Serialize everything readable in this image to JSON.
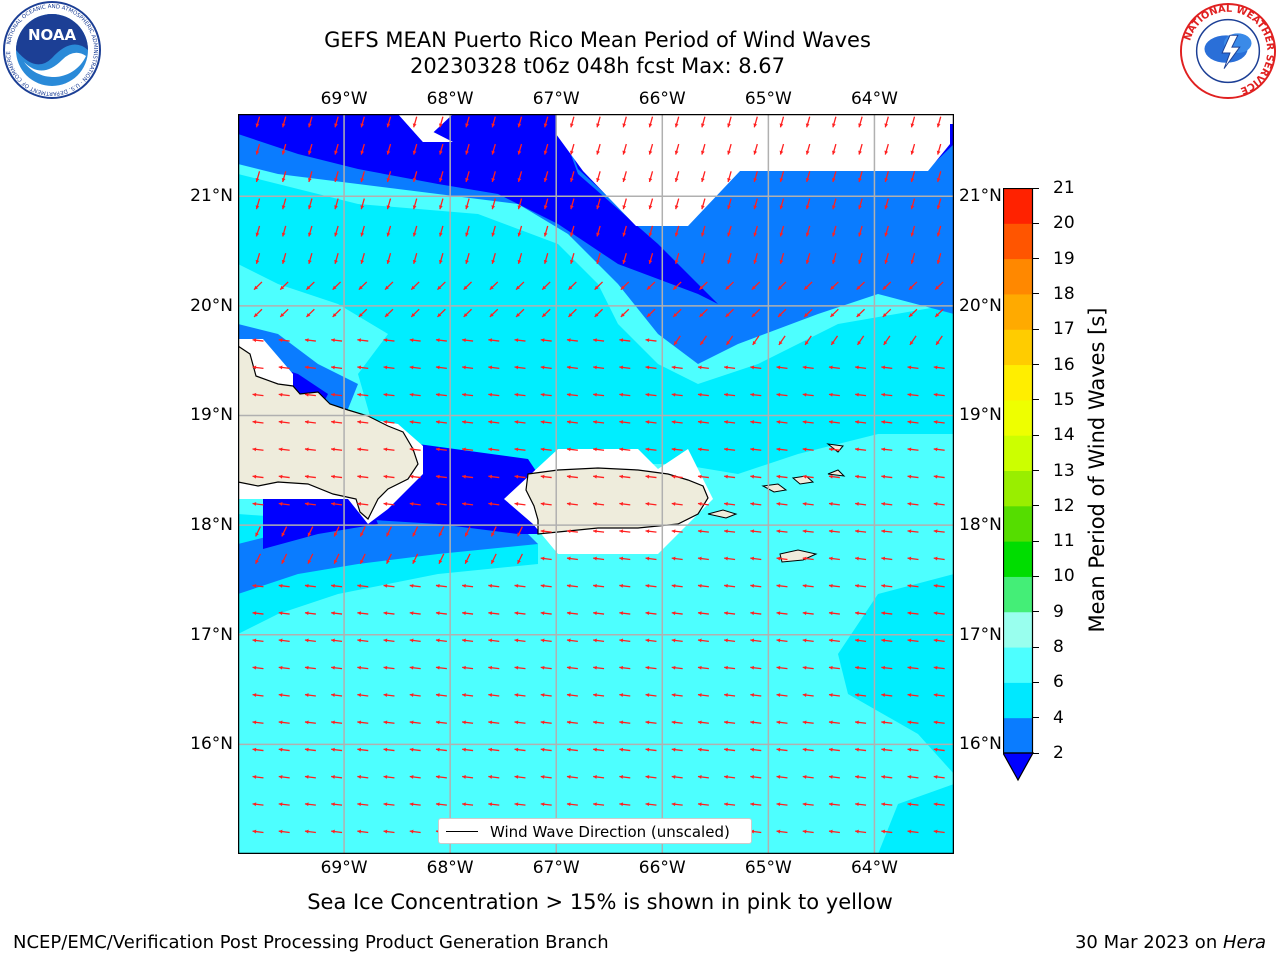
{
  "title": {
    "line1": "GEFS MEAN Puerto Rico Mean Period of Wind Waves",
    "line2": "20230328 t06z 048h fcst   Max: 8.67"
  },
  "logos": {
    "left": {
      "icon": "noaa-logo",
      "ring_text": "NATIONAL OCEANIC AND ATMOSPHERIC ADMINISTRATION · U.S. DEPARTMENT OF COMMERCE",
      "center_text": "NOAA"
    },
    "right": {
      "icon": "nws-logo",
      "ring_text": "NATIONAL WEATHER SERVICE"
    }
  },
  "map": {
    "lon_labels": [
      "69°W",
      "68°W",
      "67°W",
      "66°W",
      "65°W",
      "64°W"
    ],
    "lat_labels": [
      "21°N",
      "20°N",
      "19°N",
      "18°N",
      "17°N",
      "16°N"
    ],
    "lon_range": [
      -70.0,
      -63.25
    ],
    "lat_range": [
      15.0,
      21.75
    ],
    "legend_label": "Wind Wave Direction (unscaled)",
    "arrow_color": "#ff2020",
    "land_color": "#eeecdc",
    "grid": true
  },
  "colorbar": {
    "label": "Mean Period of Wind Waves [s]",
    "ticks": [
      "2",
      "4",
      "6",
      "8",
      "9",
      "10",
      "11",
      "12",
      "13",
      "14",
      "15",
      "16",
      "17",
      "18",
      "19",
      "20",
      "21"
    ],
    "colors": [
      "#0000ff",
      "#0a7cff",
      "#00e8ff",
      "#4dffff",
      "#99ffee",
      "#44ee77",
      "#00dd00",
      "#55dd00",
      "#99ee00",
      "#ccff00",
      "#eeff00",
      "#ffee00",
      "#ffcc00",
      "#ffaa00",
      "#ff8800",
      "#ff5500",
      "#ff2200",
      "#ff0000"
    ],
    "extend": "min"
  },
  "sea_ice_note": "Sea Ice Concentration > 15% is shown in pink to yellow",
  "footer": {
    "left": "NCEP/EMC/Verification Post Processing Product Generation Branch",
    "right_prefix": "30 Mar 2023 on ",
    "right_italic": "Hera"
  }
}
